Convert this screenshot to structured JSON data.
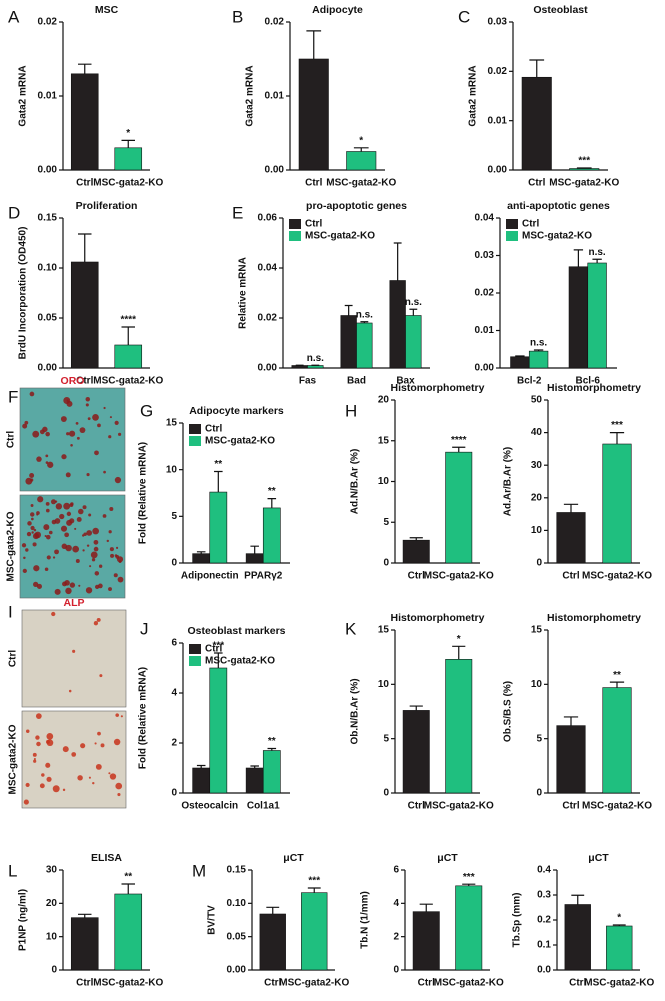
{
  "chart_data": [
    {
      "type": "bar",
      "panel": "A",
      "title": "MSC",
      "ylabel": "Gata2 mRNA",
      "categories": [
        "Ctrl",
        "MSC-gata2-KO"
      ],
      "values": [
        0.013,
        0.003
      ],
      "errors": [
        0.0013,
        0.001
      ],
      "colors": [
        "#231f20",
        "#1fbf7f"
      ],
      "annotations": [
        null,
        "*"
      ],
      "ylim": [
        0,
        0.02
      ],
      "yticks": [
        {
          "value": 0,
          "label": "0.00"
        },
        {
          "value": 0.01,
          "label": "0.01"
        },
        {
          "value": 0.02,
          "label": "0.02"
        }
      ]
    },
    {
      "type": "bar",
      "panel": "B",
      "title": "Adipocyte",
      "ylabel": "Gata2 mRNA",
      "categories": [
        "Ctrl",
        "MSC-gata2-KO"
      ],
      "values": [
        0.015,
        0.0025
      ],
      "errors": [
        0.0038,
        0.0005
      ],
      "colors": [
        "#231f20",
        "#1fbf7f"
      ],
      "annotations": [
        null,
        "*"
      ],
      "ylim": [
        0,
        0.02
      ],
      "yticks": [
        {
          "value": 0,
          "label": "0.00"
        },
        {
          "value": 0.01,
          "label": "0.01"
        },
        {
          "value": 0.02,
          "label": "0.02"
        }
      ]
    },
    {
      "type": "bar",
      "panel": "C",
      "title": "Osteoblast",
      "ylabel": "Gata2 mRNA",
      "categories": [
        "Ctrl",
        "MSC-gata2-KO"
      ],
      "values": [
        0.0188,
        0.0003
      ],
      "errors": [
        0.0035,
        0.0001
      ],
      "colors": [
        "#231f20",
        "#1fbf7f"
      ],
      "annotations": [
        null,
        "***"
      ],
      "ylim": [
        0,
        0.03
      ],
      "yticks": [
        {
          "value": 0,
          "label": "0.00"
        },
        {
          "value": 0.01,
          "label": "0.01"
        },
        {
          "value": 0.02,
          "label": "0.02"
        },
        {
          "value": 0.03,
          "label": "0.03"
        }
      ]
    },
    {
      "type": "bar",
      "panel": "D",
      "title": "Proliferation",
      "ylabel": "BrdU Incorporation (OD450)",
      "categories": [
        "Ctrl",
        "MSC-gata2-KO"
      ],
      "values": [
        0.106,
        0.023
      ],
      "errors": [
        0.028,
        0.018
      ],
      "colors": [
        "#231f20",
        "#1fbf7f"
      ],
      "annotations": [
        null,
        "****"
      ],
      "ylim": [
        0,
        0.15
      ],
      "yticks": [
        {
          "value": 0,
          "label": "0.00"
        },
        {
          "value": 0.05,
          "label": "0.05"
        },
        {
          "value": 0.1,
          "label": "0.10"
        },
        {
          "value": 0.15,
          "label": "0.15"
        }
      ]
    },
    {
      "type": "grouped_bar",
      "panel": "E",
      "title": "pro-apoptotic genes",
      "ylabel": "Relative mRNA",
      "categories": [
        "Fas",
        "Bad",
        "Bax"
      ],
      "series": [
        {
          "name": "Ctrl",
          "color": "#231f20",
          "values": [
            0.001,
            0.021,
            0.035
          ],
          "errors": [
            0.0001,
            0.004,
            0.015
          ],
          "annotations": [
            null,
            null,
            null
          ]
        },
        {
          "name": "MSC-gata2-KO",
          "color": "#1fbf7f",
          "values": [
            0.001,
            0.018,
            0.021
          ],
          "errors": [
            0.0001,
            0.0005,
            0.0025
          ],
          "annotations": [
            "n.s.",
            "n.s.",
            "n.s."
          ]
        }
      ],
      "legend": "upper left",
      "ylim": [
        0,
        0.06
      ],
      "yticks": [
        {
          "value": 0,
          "label": "0.00"
        },
        {
          "value": 0.02,
          "label": "0.02"
        },
        {
          "value": 0.04,
          "label": "0.04"
        },
        {
          "value": 0.06,
          "label": "0.06"
        }
      ]
    },
    {
      "type": "grouped_bar",
      "title": "anti-apoptotic genes",
      "categories": [
        "Bcl-2",
        "Bcl-6"
      ],
      "series": [
        {
          "name": "Ctrl",
          "color": "#231f20",
          "values": [
            0.003,
            0.027
          ],
          "errors": [
            0.0002,
            0.0045
          ],
          "annotations": [
            null,
            null
          ]
        },
        {
          "name": "MSC-gata2-KO",
          "color": "#1fbf7f",
          "values": [
            0.0045,
            0.028
          ],
          "errors": [
            0.0003,
            0.001
          ],
          "annotations": [
            "n.s.",
            "n.s."
          ]
        }
      ],
      "legend": "upper left",
      "ylim": [
        0,
        0.04
      ],
      "yticks": [
        {
          "value": 0,
          "label": "0.00"
        },
        {
          "value": 0.01,
          "label": "0.01"
        },
        {
          "value": 0.02,
          "label": "0.02"
        },
        {
          "value": 0.03,
          "label": "0.03"
        },
        {
          "value": 0.04,
          "label": "0.04"
        }
      ]
    },
    {
      "type": "grouped_bar",
      "panel": "G",
      "title": "Adipocyte markers",
      "ylabel": "Fold (Relative mRNA)",
      "categories": [
        "Adiponectin",
        "PPARγ2"
      ],
      "series": [
        {
          "name": "Ctrl",
          "color": "#231f20",
          "values": [
            1.0,
            1.0
          ],
          "errors": [
            0.2,
            0.8
          ],
          "annotations": [
            null,
            null
          ]
        },
        {
          "name": "MSC-gata2-KO",
          "color": "#1fbf7f",
          "values": [
            7.6,
            5.9
          ],
          "errors": [
            2.2,
            1.0
          ],
          "annotations": [
            "**",
            "**"
          ]
        }
      ],
      "legend": "upper left",
      "ylim": [
        0,
        15
      ],
      "yticks": [
        0,
        5,
        10,
        15
      ]
    },
    {
      "type": "bar",
      "panel": "H",
      "title": "Histomorphometry",
      "ylabel": "Ad.N/B.Ar (%)",
      "categories": [
        "Ctrl",
        "MSC-gata2-KO"
      ],
      "values": [
        2.8,
        13.6
      ],
      "errors": [
        0.3,
        0.6
      ],
      "colors": [
        "#231f20",
        "#1fbf7f"
      ],
      "annotations": [
        null,
        "****"
      ],
      "ylim": [
        0,
        20
      ],
      "yticks": [
        0,
        5,
        10,
        15,
        20
      ]
    },
    {
      "type": "bar",
      "title": "Histomorphometry",
      "ylabel": "Ad.Ar/B.Ar (%)",
      "categories": [
        "Ctrl",
        "MSC-gata2-KO"
      ],
      "values": [
        15.5,
        36.5
      ],
      "errors": [
        2.5,
        3.5
      ],
      "colors": [
        "#231f20",
        "#1fbf7f"
      ],
      "annotations": [
        null,
        "***"
      ],
      "ylim": [
        0,
        50
      ],
      "yticks": [
        0,
        10,
        20,
        30,
        40,
        50
      ]
    },
    {
      "type": "grouped_bar",
      "panel": "J",
      "title": "Osteoblast markers",
      "ylabel": "Fold (Relative mRNA)",
      "categories": [
        "Osteocalcin",
        "Col1a1"
      ],
      "series": [
        {
          "name": "Ctrl",
          "color": "#231f20",
          "values": [
            1.0,
            1.0
          ],
          "errors": [
            0.1,
            0.08
          ],
          "annotations": [
            null,
            null
          ]
        },
        {
          "name": "MSC-gata2-KO",
          "color": "#1fbf7f",
          "values": [
            5.0,
            1.7
          ],
          "errors": [
            0.6,
            0.08
          ],
          "annotations": [
            "***",
            "**"
          ]
        }
      ],
      "legend": "upper left",
      "ylim": [
        0,
        6
      ],
      "yticks": [
        0,
        2,
        4,
        6
      ]
    },
    {
      "type": "bar",
      "panel": "K",
      "title": "Histomorphometry",
      "ylabel": "Ob.N/B.Ar (%)",
      "categories": [
        "Ctrl",
        "MSC-gata2-KO"
      ],
      "values": [
        7.6,
        12.3
      ],
      "errors": [
        0.4,
        1.2
      ],
      "colors": [
        "#231f20",
        "#1fbf7f"
      ],
      "annotations": [
        null,
        "*"
      ],
      "ylim": [
        0,
        15
      ],
      "yticks": [
        0,
        5,
        10,
        15
      ]
    },
    {
      "type": "bar",
      "title": "Histomorphometry",
      "ylabel": "Ob.S/B.S (%)",
      "categories": [
        "Ctrl",
        "MSC-gata2-KO"
      ],
      "values": [
        6.2,
        9.7
      ],
      "errors": [
        0.8,
        0.5
      ],
      "colors": [
        "#231f20",
        "#1fbf7f"
      ],
      "annotations": [
        null,
        "**"
      ],
      "ylim": [
        0,
        15
      ],
      "yticks": [
        0,
        5,
        10,
        15
      ]
    },
    {
      "type": "bar",
      "panel": "L",
      "title": "ELISA",
      "ylabel": "P1NP (ng/ml)",
      "categories": [
        "Ctrl",
        "MSC-gata2-KO"
      ],
      "values": [
        15.7,
        22.8
      ],
      "errors": [
        1.0,
        3.0
      ],
      "colors": [
        "#231f20",
        "#1fbf7f"
      ],
      "annotations": [
        null,
        "**"
      ],
      "ylim": [
        0,
        30
      ],
      "yticks": [
        0,
        10,
        20,
        30
      ]
    },
    {
      "type": "bar",
      "panel": "M",
      "title": "μCT",
      "ylabel": "BV/TV",
      "categories": [
        "Ctrl",
        "MSC-gata2-KO"
      ],
      "values": [
        0.084,
        0.116
      ],
      "errors": [
        0.01,
        0.007
      ],
      "colors": [
        "#231f20",
        "#1fbf7f"
      ],
      "annotations": [
        null,
        "***"
      ],
      "ylim": [
        0,
        0.15
      ],
      "yticks": [
        {
          "value": 0,
          "label": "0.00"
        },
        {
          "value": 0.05,
          "label": "0.05"
        },
        {
          "value": 0.1,
          "label": "0.10"
        },
        {
          "value": 0.15,
          "label": "0.15"
        }
      ]
    },
    {
      "type": "bar",
      "title": "μCT",
      "ylabel": "Tb.N (1/mm)",
      "categories": [
        "Ctrl",
        "MSC-gata2-KO"
      ],
      "values": [
        3.5,
        5.05
      ],
      "errors": [
        0.45,
        0.1
      ],
      "colors": [
        "#231f20",
        "#1fbf7f"
      ],
      "annotations": [
        null,
        "***"
      ],
      "ylim": [
        0,
        6
      ],
      "yticks": [
        0,
        2,
        4,
        6
      ]
    },
    {
      "type": "bar",
      "title": "μCT",
      "ylabel": "Tb.Sp (mm)",
      "categories": [
        "Ctrl",
        "MSC-gata2-KO"
      ],
      "values": [
        0.262,
        0.176
      ],
      "errors": [
        0.037,
        0.004
      ],
      "colors": [
        "#231f20",
        "#1fbf7f"
      ],
      "annotations": [
        null,
        "*"
      ],
      "ylim": [
        0,
        0.4
      ],
      "yticks": [
        {
          "value": 0,
          "label": "0.0"
        },
        {
          "value": 0.1,
          "label": "0.1"
        },
        {
          "value": 0.2,
          "label": "0.2"
        },
        {
          "value": 0.3,
          "label": "0.3"
        },
        {
          "value": 0.4,
          "label": "0.4"
        }
      ]
    }
  ],
  "images": [
    {
      "panel": "F",
      "title": "ORO",
      "labels": [
        "Ctrl",
        "MSC-gata2-KO"
      ]
    },
    {
      "panel": "I",
      "title": "ALP",
      "labels": [
        "Ctrl",
        "MSC-gata2-KO"
      ]
    }
  ]
}
